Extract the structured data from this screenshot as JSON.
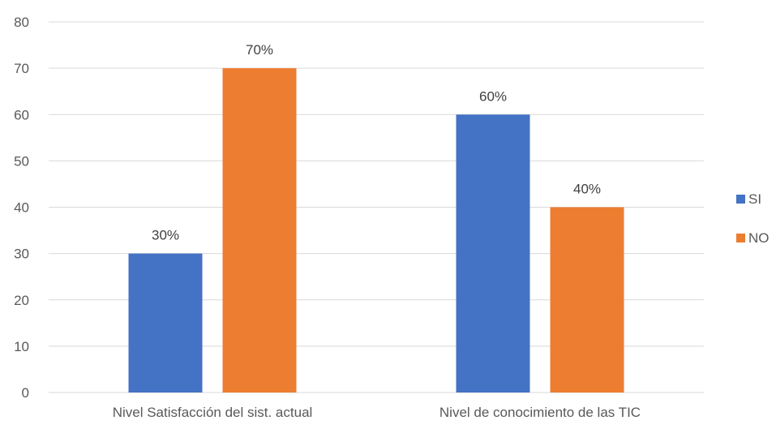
{
  "chart_data": {
    "type": "bar",
    "categories": [
      "Nivel Satisfacción del sist. actual",
      "Nivel de conocimiento de las TIC"
    ],
    "series": [
      {
        "name": "SI",
        "values": [
          30,
          60
        ],
        "labels": [
          "30%",
          "60%"
        ],
        "color": "#4472c4"
      },
      {
        "name": "NO",
        "values": [
          70,
          40
        ],
        "labels": [
          "70%",
          "40%"
        ],
        "color": "#ed7d31"
      }
    ],
    "title": "",
    "xlabel": "",
    "ylabel": "",
    "ylim": [
      0,
      80
    ],
    "yticks": [
      0,
      10,
      20,
      30,
      40,
      50,
      60,
      70,
      80
    ],
    "grid": true,
    "legend_position": "right"
  }
}
